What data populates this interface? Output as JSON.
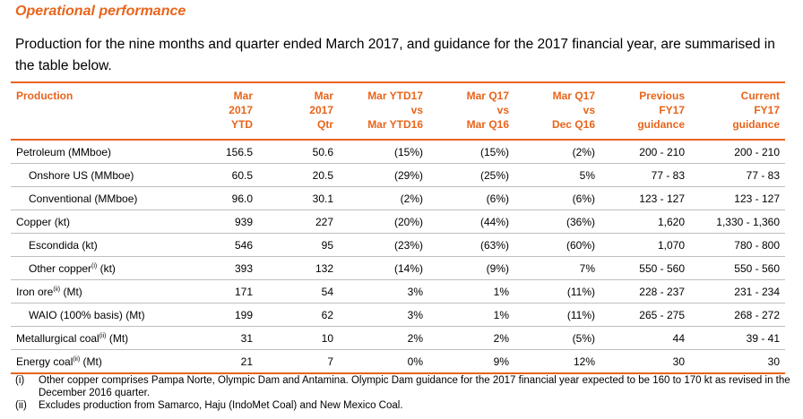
{
  "title": "Operational performance",
  "intro": "Production for the nine months and quarter ended March 2017, and guidance for the 2017 financial year, are summarised in the table below.",
  "table": {
    "headers": [
      [
        "Production"
      ],
      [
        "Mar",
        "2017",
        "YTD"
      ],
      [
        "Mar",
        "2017",
        "Qtr"
      ],
      [
        "Mar YTD17",
        "vs",
        "Mar YTD16"
      ],
      [
        "Mar Q17",
        "vs",
        "Mar Q16"
      ],
      [
        "Mar Q17",
        "vs",
        "Dec Q16"
      ],
      [
        "Previous",
        "FY17",
        "guidance"
      ],
      [
        "Current",
        "FY17",
        "guidance"
      ]
    ],
    "rows": [
      {
        "label": "Petroleum (MMboe)",
        "sup": "",
        "unit": "",
        "indent": false,
        "values": [
          "156.5",
          "50.6",
          "(15%)",
          "(15%)",
          "(2%)",
          "200 - 210",
          "200 - 210"
        ]
      },
      {
        "label": "Onshore US (MMboe)",
        "sup": "",
        "unit": "",
        "indent": true,
        "values": [
          "60.5",
          "20.5",
          "(29%)",
          "(25%)",
          "5%",
          "77 - 83",
          "77 - 83"
        ]
      },
      {
        "label": "Conventional (MMboe)",
        "sup": "",
        "unit": "",
        "indent": true,
        "values": [
          "96.0",
          "30.1",
          "(2%)",
          "(6%)",
          "(6%)",
          "123 - 127",
          "123 - 127"
        ]
      },
      {
        "label": "Copper (kt)",
        "sup": "",
        "unit": "",
        "indent": false,
        "values": [
          "939",
          "227",
          "(20%)",
          "(44%)",
          "(36%)",
          "1,620",
          "1,330 - 1,360"
        ]
      },
      {
        "label": "Escondida (kt)",
        "sup": "",
        "unit": "",
        "indent": true,
        "values": [
          "546",
          "95",
          "(23%)",
          "(63%)",
          "(60%)",
          "1,070",
          "780 - 800"
        ]
      },
      {
        "label": "Other copper",
        "sup": "(i)",
        "unit": " (kt)",
        "indent": true,
        "values": [
          "393",
          "132",
          "(14%)",
          "(9%)",
          "7%",
          "550 - 560",
          "550 - 560"
        ]
      },
      {
        "label": "Iron ore",
        "sup": "(ii)",
        "unit": " (Mt)",
        "indent": false,
        "values": [
          "171",
          "54",
          "3%",
          "1%",
          "(11%)",
          "228 - 237",
          "231 - 234"
        ]
      },
      {
        "label": "WAIO (100% basis) (Mt)",
        "sup": "",
        "unit": "",
        "indent": true,
        "values": [
          "199",
          "62",
          "3%",
          "1%",
          "(11%)",
          "265 - 275",
          "268 - 272"
        ]
      },
      {
        "label": "Metallurgical coal",
        "sup": "(ii)",
        "unit": " (Mt)",
        "indent": false,
        "values": [
          "31",
          "10",
          "2%",
          "2%",
          "(5%)",
          "44",
          "39 - 41"
        ]
      },
      {
        "label": "Energy coal",
        "sup": "(ii)",
        "unit": " (Mt)",
        "indent": false,
        "values": [
          "21",
          "7",
          "0%",
          "9%",
          "12%",
          "30",
          "30"
        ]
      }
    ]
  },
  "footnotes": [
    {
      "tag": "(i)",
      "text": "Other copper comprises Pampa Norte, Olympic Dam and Antamina. Olympic Dam guidance for the 2017 financial year expected to be 160 to 170 kt as revised in the December 2016 quarter."
    },
    {
      "tag": "(ii)",
      "text": "Excludes production from Samarco, Haju (IndoMet Coal) and New Mexico Coal."
    }
  ],
  "colors": {
    "accent": "#e8641b",
    "rule": "#bfbfbf"
  }
}
